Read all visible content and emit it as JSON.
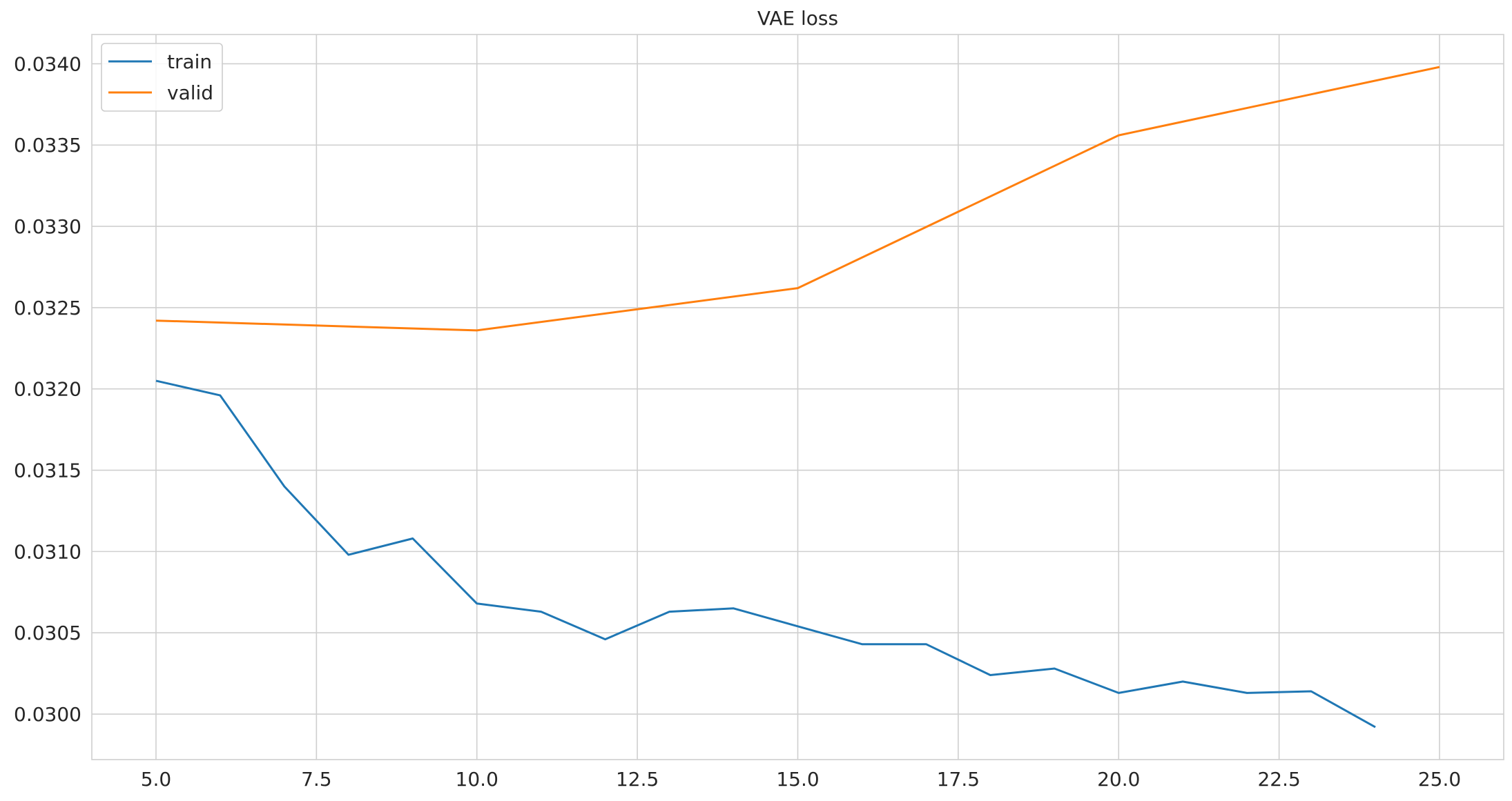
{
  "chart_data": {
    "type": "line",
    "title": "VAE loss",
    "xlabel": "",
    "ylabel": "",
    "xlim": [
      4.0,
      26.0
    ],
    "ylim": [
      0.02972,
      0.03418
    ],
    "xticks": [
      5.0,
      7.5,
      10.0,
      12.5,
      15.0,
      17.5,
      20.0,
      22.5,
      25.0
    ],
    "xtick_labels": [
      "5.0",
      "7.5",
      "10.0",
      "12.5",
      "15.0",
      "17.5",
      "20.0",
      "22.5",
      "25.0"
    ],
    "yticks": [
      0.03,
      0.0305,
      0.031,
      0.0315,
      0.032,
      0.0325,
      0.033,
      0.0335,
      0.034
    ],
    "ytick_labels": [
      "0.0300",
      "0.0305",
      "0.0310",
      "0.0315",
      "0.0320",
      "0.0325",
      "0.0330",
      "0.0335",
      "0.0340"
    ],
    "grid": true,
    "legend_position": "top-left",
    "series": [
      {
        "name": "train",
        "color": "#1f77b4",
        "x": [
          5,
          6,
          7,
          8,
          9,
          10,
          11,
          12,
          13,
          14,
          15,
          16,
          17,
          18,
          19,
          20,
          21,
          22,
          23,
          24
        ],
        "y": [
          0.03205,
          0.03196,
          0.0314,
          0.03098,
          0.03108,
          0.03068,
          0.03063,
          0.03046,
          0.03063,
          0.03065,
          0.03054,
          0.03043,
          0.03043,
          0.03024,
          0.03028,
          0.03013,
          0.0302,
          0.03013,
          0.03014,
          0.02992
        ]
      },
      {
        "name": "valid",
        "color": "#ff7f0e",
        "x": [
          5,
          10,
          15,
          20,
          25
        ],
        "y": [
          0.03242,
          0.03236,
          0.03262,
          0.03356,
          0.03398
        ]
      }
    ]
  }
}
